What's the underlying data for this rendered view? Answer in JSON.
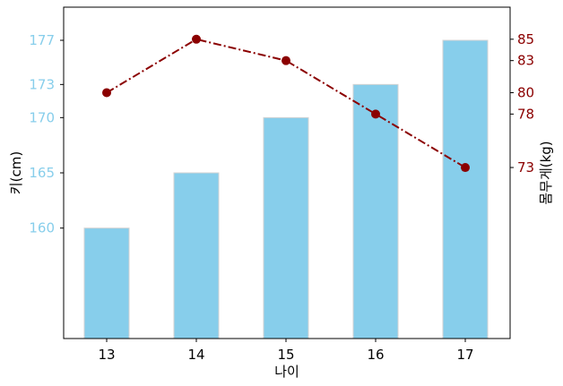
{
  "chart_data": {
    "type": "bar",
    "categories": [
      "13",
      "14",
      "15",
      "16",
      "17"
    ],
    "xlabel": "나이",
    "left_axis": {
      "label": "키(cm)",
      "ticks": [
        160,
        165,
        170,
        173,
        177
      ],
      "ylim": [
        150,
        180
      ],
      "color": "#87ceeb"
    },
    "right_axis": {
      "label": "몸무게(kg)",
      "ticks": [
        73,
        78,
        80,
        83,
        85
      ],
      "ylim": [
        57,
        88
      ],
      "color": "#8b0000"
    },
    "series": [
      {
        "type": "bar",
        "axis": "left",
        "values": [
          160,
          165,
          170,
          173,
          177
        ],
        "color": "#87ceeb",
        "edge_color": "#d3d3d3"
      },
      {
        "type": "line",
        "axis": "right",
        "values": [
          80,
          85,
          83,
          78,
          73
        ],
        "color": "#8b0000",
        "line_style": "dash-dot",
        "marker": "circle"
      }
    ],
    "grid": false,
    "legend": "none"
  }
}
